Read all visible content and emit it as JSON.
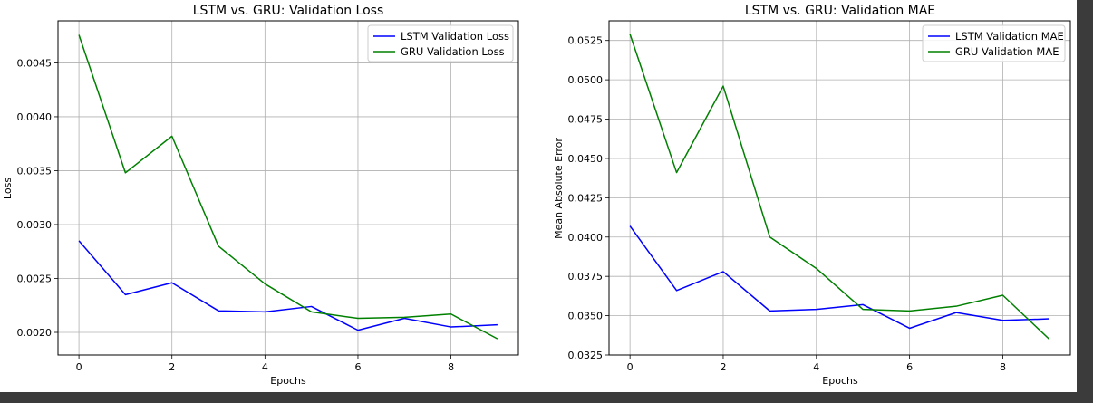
{
  "chart_data": [
    {
      "type": "line",
      "title": "LSTM vs. GRU: Validation Loss",
      "xlabel": "Epochs",
      "ylabel": "Loss",
      "xlim": [
        -0.45,
        9.45
      ],
      "ylim": [
        0.00179,
        0.00489
      ],
      "xticks": [
        0,
        2,
        4,
        6,
        8
      ],
      "yticks": [
        0.002,
        0.0025,
        0.003,
        0.0035,
        0.004,
        0.0045
      ],
      "ytick_labels": [
        "0.0020",
        "0.0025",
        "0.0030",
        "0.0035",
        "0.0040",
        "0.0045"
      ],
      "grid": true,
      "legend": "top-right",
      "x": [
        0,
        1,
        2,
        3,
        4,
        5,
        6,
        7,
        8,
        9
      ],
      "series": [
        {
          "name": "LSTM Validation Loss",
          "color": "#0000ff",
          "values": [
            0.00285,
            0.00235,
            0.00246,
            0.0022,
            0.00219,
            0.00224,
            0.00202,
            0.00213,
            0.00205,
            0.00207
          ]
        },
        {
          "name": "GRU Validation Loss",
          "color": "#008000",
          "values": [
            0.00476,
            0.00348,
            0.00382,
            0.0028,
            0.00245,
            0.00219,
            0.00213,
            0.00214,
            0.00217,
            0.00194
          ]
        }
      ]
    },
    {
      "type": "line",
      "title": "LSTM vs. GRU: Validation MAE",
      "xlabel": "Epochs",
      "ylabel": "Mean Absolute Error",
      "xlim": [
        -0.45,
        9.45
      ],
      "ylim": [
        0.0325,
        0.05375
      ],
      "xticks": [
        0,
        2,
        4,
        6,
        8
      ],
      "yticks": [
        0.0325,
        0.035,
        0.0375,
        0.04,
        0.0425,
        0.045,
        0.0475,
        0.05,
        0.0525
      ],
      "ytick_labels": [
        "0.0325",
        "0.0350",
        "0.0375",
        "0.0400",
        "0.0425",
        "0.0450",
        "0.0475",
        "0.0500",
        "0.0525"
      ],
      "grid": true,
      "legend": "top-right",
      "x": [
        0,
        1,
        2,
        3,
        4,
        5,
        6,
        7,
        8,
        9
      ],
      "series": [
        {
          "name": "LSTM Validation MAE",
          "color": "#0000ff",
          "values": [
            0.0407,
            0.0366,
            0.0378,
            0.0353,
            0.0354,
            0.0357,
            0.0342,
            0.0352,
            0.0347,
            0.0348
          ]
        },
        {
          "name": "GRU Validation MAE",
          "color": "#008000",
          "values": [
            0.0529,
            0.0441,
            0.0496,
            0.04,
            0.038,
            0.0354,
            0.0353,
            0.0356,
            0.0363,
            0.0335
          ]
        }
      ]
    }
  ]
}
